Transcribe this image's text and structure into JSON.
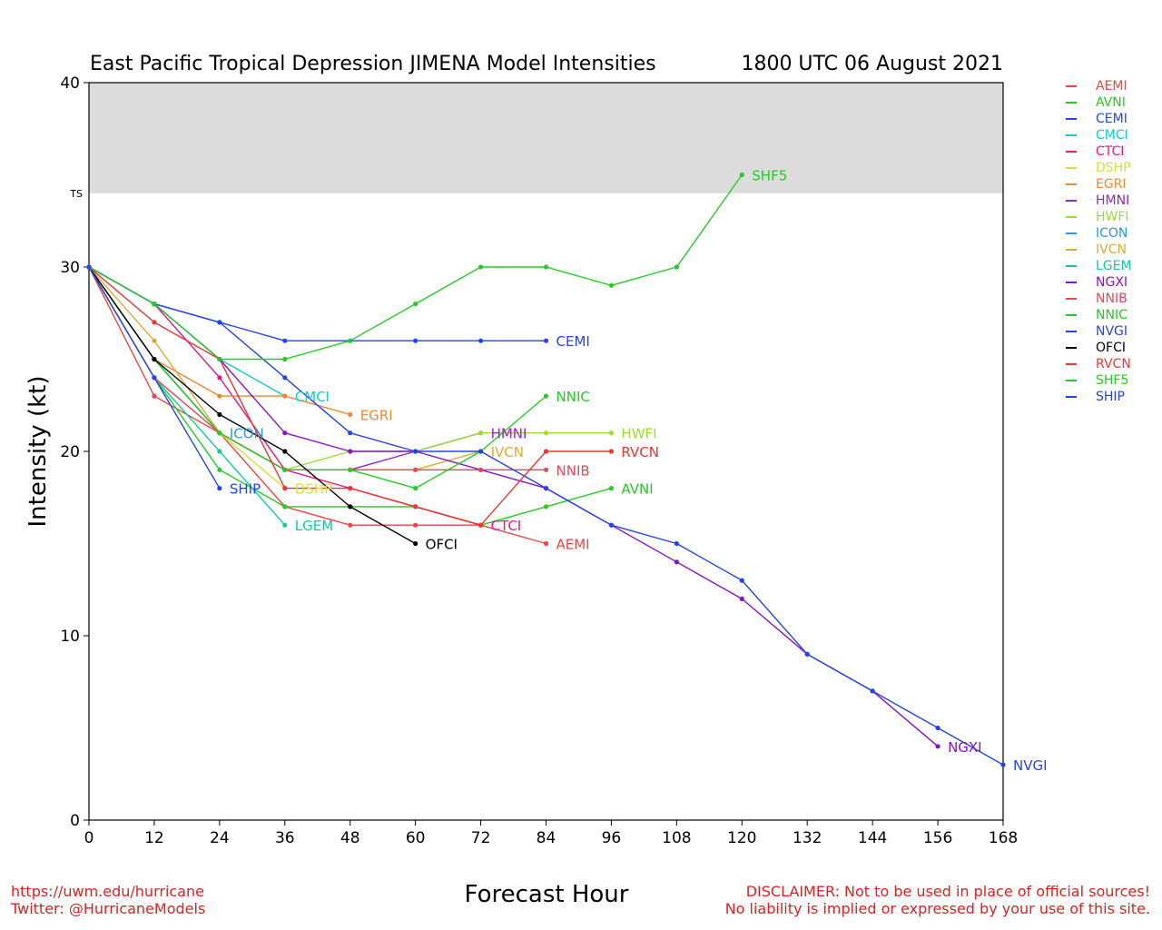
{
  "header": {
    "title": "East Pacific Tropical Depression JIMENA Model Intensities",
    "datetime": "1800 UTC 06 August 2021"
  },
  "footer": {
    "url": "https://uwm.edu/hurricane",
    "twitter": "Twitter: @HurricaneModels",
    "disclaimer_line1": "DISCLAIMER: Not to be used in place of official sources!",
    "disclaimer_line2": "No liability is implied or expressed by your use of this site."
  },
  "chart_data": {
    "type": "line",
    "title": "East Pacific Tropical Depression JIMENA Model Intensities",
    "xlabel": "Forecast Hour",
    "ylabel": "Intensity (kt)",
    "xlim": [
      0,
      168
    ],
    "ylim": [
      0,
      40
    ],
    "xticks": [
      0,
      12,
      24,
      36,
      48,
      60,
      72,
      84,
      96,
      108,
      120,
      132,
      144,
      156,
      168
    ],
    "yticks": [
      0,
      10,
      20,
      30,
      40
    ],
    "threshold_band": {
      "label": "TS",
      "from": 34,
      "to": 40,
      "color": "#dcdcdc"
    },
    "legend_position": "right",
    "series": [
      {
        "name": "AEMI",
        "color": "#ee4444",
        "x": [
          0,
          12,
          24,
          36,
          48,
          60,
          72,
          84
        ],
        "y": [
          30,
          23,
          21,
          17,
          16,
          16,
          16,
          15
        ]
      },
      {
        "name": "AVNI",
        "color": "#22cc22",
        "x": [
          0,
          12,
          24,
          36,
          48,
          60,
          72,
          84,
          96
        ],
        "y": [
          30,
          24,
          19,
          17,
          17,
          17,
          16,
          17,
          18
        ]
      },
      {
        "name": "CEMI",
        "color": "#2244ee",
        "x": [
          0,
          12,
          24,
          36,
          48,
          60,
          72,
          84
        ],
        "y": [
          30,
          28,
          27,
          26,
          26,
          26,
          26,
          26
        ]
      },
      {
        "name": "CMCI",
        "color": "#11cccc",
        "x": [
          0,
          12,
          24,
          36
        ],
        "y": [
          30,
          28,
          25,
          23
        ]
      },
      {
        "name": "CTCI",
        "color": "#ee1188",
        "x": [
          0,
          12,
          24,
          36,
          48,
          60,
          72
        ],
        "y": [
          30,
          28,
          24,
          19,
          18,
          17,
          16
        ]
      },
      {
        "name": "DSHP",
        "color": "#dddd33",
        "x": [
          0,
          12,
          24,
          36
        ],
        "y": [
          30,
          25,
          21,
          18
        ]
      },
      {
        "name": "EGRI",
        "color": "#ee8833",
        "x": [
          0,
          12,
          24,
          36,
          48
        ],
        "y": [
          30,
          25,
          23,
          23,
          22
        ]
      },
      {
        "name": "HMNI",
        "color": "#9922cc",
        "x": [
          0,
          12,
          24,
          36,
          48,
          60,
          72
        ],
        "y": [
          30,
          25,
          21,
          19,
          19,
          20,
          21
        ]
      },
      {
        "name": "HWFI",
        "color": "#99dd33",
        "x": [
          0,
          12,
          24,
          36,
          48,
          60,
          72,
          84,
          96
        ],
        "y": [
          30,
          25,
          21,
          19,
          20,
          20,
          21,
          21,
          21
        ]
      },
      {
        "name": "ICON",
        "color": "#2299ee",
        "x": [
          0,
          12,
          24
        ],
        "y": [
          30,
          25,
          21
        ]
      },
      {
        "name": "IVCN",
        "color": "#ddaa33",
        "x": [
          0,
          12,
          24,
          36,
          48,
          60,
          72
        ],
        "y": [
          30,
          26,
          21,
          19,
          19,
          19,
          20
        ]
      },
      {
        "name": "LGEM",
        "color": "#11cc99",
        "x": [
          0,
          12,
          24,
          36
        ],
        "y": [
          30,
          24,
          20,
          16
        ]
      },
      {
        "name": "NGXI",
        "color": "#8811cc",
        "x": [
          0,
          12,
          24,
          36,
          48,
          60,
          72,
          84,
          96,
          108,
          120,
          132,
          144,
          156
        ],
        "y": [
          30,
          28,
          25,
          21,
          20,
          20,
          19,
          18,
          16,
          14,
          12,
          9,
          7,
          4
        ]
      },
      {
        "name": "NNIB",
        "color": "#ee4455",
        "x": [
          0,
          12,
          24,
          36,
          48,
          60,
          72,
          84
        ],
        "y": [
          30,
          24,
          21,
          19,
          19,
          19,
          19,
          19
        ]
      },
      {
        "name": "NNIC",
        "color": "#22cc22",
        "x": [
          0,
          12,
          24,
          36,
          48,
          60,
          72,
          84
        ],
        "y": [
          30,
          25,
          21,
          19,
          19,
          18,
          20,
          23
        ]
      },
      {
        "name": "NVGI",
        "color": "#2244ee",
        "x": [
          0,
          12,
          24,
          36,
          48,
          60,
          72,
          84,
          96,
          108,
          120,
          132,
          144,
          156,
          168
        ],
        "y": [
          30,
          28,
          27,
          24,
          21,
          20,
          20,
          18,
          16,
          15,
          13,
          9,
          7,
          5,
          3
        ]
      },
      {
        "name": "OFCI",
        "color": "#000000",
        "x": [
          0,
          12,
          24,
          36,
          48,
          60
        ],
        "y": [
          30,
          25,
          22,
          20,
          17,
          15
        ]
      },
      {
        "name": "RVCN",
        "color": "#ee3333",
        "x": [
          0,
          12,
          24,
          36,
          48,
          60,
          72,
          84,
          96
        ],
        "y": [
          30,
          27,
          25,
          18,
          18,
          17,
          16,
          20,
          20
        ]
      },
      {
        "name": "SHF5",
        "color": "#22cc22",
        "x": [
          0,
          12,
          24,
          36,
          48,
          60,
          72,
          84,
          96,
          108,
          120
        ],
        "y": [
          30,
          28,
          25,
          25,
          26,
          28,
          30,
          30,
          29,
          30,
          35
        ]
      },
      {
        "name": "SHIP",
        "color": "#2244ee",
        "x": [
          0,
          12,
          24
        ],
        "y": [
          30,
          24,
          18
        ]
      }
    ]
  }
}
